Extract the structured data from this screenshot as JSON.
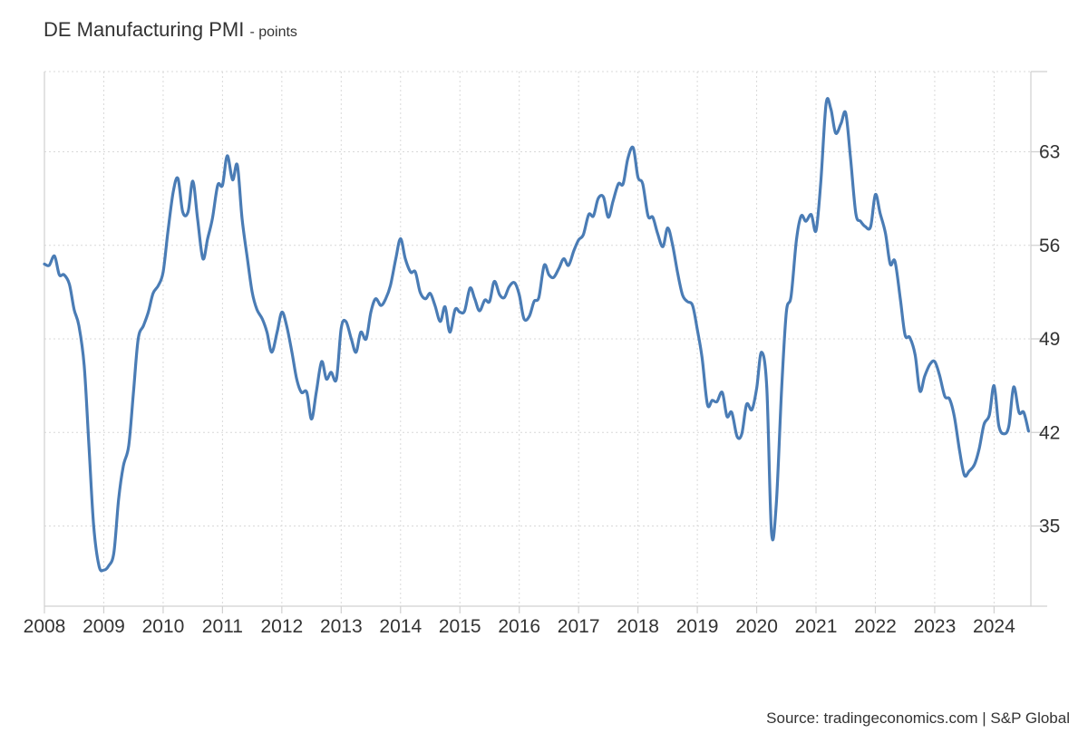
{
  "colors": {
    "line": "#4a7cb5",
    "grid": "#d9d9d9",
    "axis": "#d0d0d0",
    "text": "#333333"
  },
  "source": "Source: tradingeconomics.com | S&P Global",
  "chart_data": {
    "type": "line",
    "title": "DE Manufacturing PMI",
    "unit": "- points",
    "xlabel": "",
    "ylabel": "",
    "xlim": [
      2008.0,
      2024.62
    ],
    "ylim": [
      29.0,
      69.0
    ],
    "grid": true,
    "legend": "none",
    "y_ticks": [
      35,
      42,
      49,
      56,
      63
    ],
    "x_ticks": [
      2008,
      2009,
      2010,
      2011,
      2012,
      2013,
      2014,
      2015,
      2016,
      2017,
      2018,
      2019,
      2020,
      2021,
      2022,
      2023,
      2024
    ],
    "x_tick_labels": [
      "2008",
      "2009",
      "2010",
      "2011",
      "2012",
      "2013",
      "2014",
      "2015",
      "2016",
      "2017",
      "2018",
      "2019",
      "2020",
      "2021",
      "2022",
      "2023",
      "2024"
    ],
    "series": [
      {
        "name": "DE Manufacturing PMI",
        "x": [
          2008.0,
          2008.08,
          2008.17,
          2008.25,
          2008.33,
          2008.42,
          2008.5,
          2008.58,
          2008.67,
          2008.75,
          2008.83,
          2008.92,
          2009.0,
          2009.08,
          2009.17,
          2009.25,
          2009.33,
          2009.42,
          2009.5,
          2009.58,
          2009.67,
          2009.75,
          2009.83,
          2009.92,
          2010.0,
          2010.08,
          2010.17,
          2010.25,
          2010.33,
          2010.42,
          2010.5,
          2010.58,
          2010.67,
          2010.75,
          2010.83,
          2010.92,
          2011.0,
          2011.08,
          2011.17,
          2011.25,
          2011.33,
          2011.42,
          2011.5,
          2011.58,
          2011.67,
          2011.75,
          2011.83,
          2011.92,
          2012.0,
          2012.08,
          2012.17,
          2012.25,
          2012.33,
          2012.42,
          2012.5,
          2012.58,
          2012.67,
          2012.75,
          2012.83,
          2012.92,
          2013.0,
          2013.08,
          2013.17,
          2013.25,
          2013.33,
          2013.42,
          2013.5,
          2013.58,
          2013.67,
          2013.75,
          2013.83,
          2013.92,
          2014.0,
          2014.08,
          2014.17,
          2014.25,
          2014.33,
          2014.42,
          2014.5,
          2014.58,
          2014.67,
          2014.75,
          2014.83,
          2014.92,
          2015.0,
          2015.08,
          2015.17,
          2015.25,
          2015.33,
          2015.42,
          2015.5,
          2015.58,
          2015.67,
          2015.75,
          2015.83,
          2015.92,
          2016.0,
          2016.08,
          2016.17,
          2016.25,
          2016.33,
          2016.42,
          2016.5,
          2016.58,
          2016.67,
          2016.75,
          2016.83,
          2016.92,
          2017.0,
          2017.08,
          2017.17,
          2017.25,
          2017.33,
          2017.42,
          2017.5,
          2017.58,
          2017.67,
          2017.75,
          2017.83,
          2017.92,
          2018.0,
          2018.08,
          2018.17,
          2018.25,
          2018.33,
          2018.42,
          2018.5,
          2018.58,
          2018.67,
          2018.75,
          2018.83,
          2018.92,
          2019.0,
          2019.08,
          2019.17,
          2019.25,
          2019.33,
          2019.42,
          2019.5,
          2019.58,
          2019.67,
          2019.75,
          2019.83,
          2019.92,
          2020.0,
          2020.08,
          2020.17,
          2020.25,
          2020.33,
          2020.42,
          2020.5,
          2020.58,
          2020.67,
          2020.75,
          2020.83,
          2020.92,
          2021.0,
          2021.08,
          2021.17,
          2021.25,
          2021.33,
          2021.42,
          2021.5,
          2021.58,
          2021.67,
          2021.75,
          2021.83,
          2021.92,
          2022.0,
          2022.08,
          2022.17,
          2022.25,
          2022.33,
          2022.42,
          2022.5,
          2022.58,
          2022.67,
          2022.75,
          2022.83,
          2022.92,
          2023.0,
          2023.08,
          2023.17,
          2023.25,
          2023.33,
          2023.42,
          2023.5,
          2023.58,
          2023.67,
          2023.75,
          2023.83,
          2023.92,
          2024.0,
          2024.08,
          2024.17,
          2024.25,
          2024.33,
          2024.42,
          2024.5,
          2024.58
        ],
        "values": [
          54.6,
          54.5,
          55.2,
          53.8,
          53.8,
          53.1,
          51.2,
          50.0,
          47.0,
          41.0,
          35.0,
          32.0,
          31.7,
          32.0,
          33.0,
          37.0,
          39.5,
          41.0,
          45.0,
          49.0,
          50.0,
          51.0,
          52.4,
          53.0,
          54.0,
          57.0,
          60.0,
          61.0,
          58.5,
          58.5,
          60.8,
          58.0,
          55.0,
          56.5,
          58.0,
          60.5,
          60.5,
          62.7,
          60.9,
          62.0,
          58.0,
          55.0,
          52.5,
          51.2,
          50.5,
          49.5,
          48.0,
          49.5,
          51.0,
          50.0,
          48.0,
          46.0,
          45.0,
          45.0,
          43.0,
          45.0,
          47.3,
          46.0,
          46.5,
          46.0,
          49.8,
          50.3,
          49.0,
          48.0,
          49.5,
          49.0,
          51.0,
          52.0,
          51.5,
          52.0,
          53.0,
          55.0,
          56.5,
          55.0,
          54.0,
          54.0,
          52.5,
          52.0,
          52.4,
          51.5,
          50.3,
          51.4,
          49.5,
          51.2,
          51.0,
          51.1,
          52.8,
          52.0,
          51.1,
          51.9,
          51.8,
          53.3,
          52.3,
          52.1,
          52.9,
          53.2,
          52.3,
          50.5,
          50.7,
          51.8,
          52.1,
          54.5,
          53.8,
          53.6,
          54.3,
          55.0,
          54.5,
          55.6,
          56.4,
          56.8,
          58.3,
          58.2,
          59.5,
          59.6,
          58.1,
          59.3,
          60.6,
          60.6,
          62.5,
          63.3,
          61.1,
          60.6,
          58.2,
          58.1,
          56.9,
          55.9,
          57.3,
          56.1,
          53.9,
          52.3,
          51.8,
          51.5,
          49.7,
          47.6,
          44.1,
          44.4,
          44.3,
          45.0,
          43.2,
          43.5,
          41.7,
          41.9,
          44.1,
          43.7,
          45.3,
          48.0,
          45.4,
          34.5,
          36.6,
          45.2,
          51.0,
          52.2,
          56.4,
          58.2,
          57.8,
          58.3,
          57.1,
          60.7,
          66.6,
          66.2,
          64.4,
          65.1,
          65.9,
          62.6,
          58.4,
          57.8,
          57.4,
          57.4,
          59.8,
          58.4,
          56.9,
          54.6,
          54.8,
          52.0,
          49.3,
          49.1,
          47.8,
          45.1,
          46.2,
          47.1,
          47.3,
          46.3,
          44.7,
          44.5,
          43.2,
          40.6,
          38.8,
          39.1,
          39.6,
          40.8,
          42.6,
          43.3,
          45.5,
          42.5,
          41.9,
          42.5,
          45.4,
          43.5,
          43.5,
          42.1
        ]
      }
    ]
  }
}
